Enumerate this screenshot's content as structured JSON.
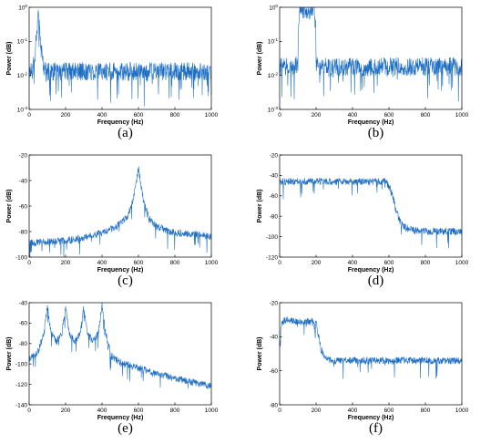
{
  "chart_data": [
    {
      "panel_label": "(a)",
      "type": "line",
      "xlabel": "Frequency (Hz)",
      "ylabel": "Power (dB)",
      "xlim": [
        0,
        1000
      ],
      "ylim": [
        0.001,
        1
      ],
      "yscale": "log",
      "xticks": [
        0,
        200,
        400,
        600,
        800,
        1000
      ],
      "yticks": [
        {
          "value": 0.001,
          "base": "10",
          "exp": "-3"
        },
        {
          "value": 0.01,
          "base": "10",
          "exp": "-2"
        },
        {
          "value": 0.1,
          "base": "10",
          "exp": "-1"
        },
        {
          "value": 1,
          "base": "10",
          "exp": "0"
        }
      ],
      "grid": false,
      "series": [
        {
          "x": [
            0,
            20,
            35,
            45,
            50,
            55,
            65,
            80,
            100,
            150,
            200,
            300,
            400,
            500,
            600,
            700,
            800,
            900,
            1000
          ],
          "values": [
            0.013,
            0.015,
            0.05,
            0.3,
            0.7,
            0.3,
            0.05,
            0.015,
            0.013,
            0.013,
            0.013,
            0.013,
            0.013,
            0.013,
            0.013,
            0.013,
            0.013,
            0.013,
            0.013
          ]
        }
      ]
    },
    {
      "panel_label": "(b)",
      "type": "line",
      "xlabel": "Frequency (Hz)",
      "ylabel": "Power (dB)",
      "xlim": [
        0,
        1000
      ],
      "ylim": [
        0.001,
        1
      ],
      "yscale": "log",
      "xticks": [
        0,
        200,
        400,
        600,
        800,
        1000
      ],
      "yticks": [
        {
          "value": 0.001,
          "base": "10",
          "exp": "-3"
        },
        {
          "value": 0.01,
          "base": "10",
          "exp": "-2"
        },
        {
          "value": 0.1,
          "base": "10",
          "exp": "-1"
        },
        {
          "value": 1,
          "base": "10",
          "exp": "0"
        }
      ],
      "grid": false,
      "series": [
        {
          "x": [
            0,
            50,
            100,
            110,
            120,
            130,
            140,
            150,
            160,
            170,
            180,
            190,
            200,
            250,
            300,
            400,
            500,
            600,
            700,
            800,
            900,
            1000
          ],
          "values": [
            0.018,
            0.018,
            0.02,
            0.8,
            0.8,
            0.8,
            0.8,
            0.8,
            0.8,
            0.8,
            0.8,
            0.8,
            0.02,
            0.018,
            0.018,
            0.018,
            0.018,
            0.018,
            0.018,
            0.018,
            0.018,
            0.018
          ]
        }
      ]
    },
    {
      "panel_label": "(c)",
      "type": "line",
      "xlabel": "Frequency (Hz)",
      "ylabel": "Power (dB)",
      "xlim": [
        0,
        1000
      ],
      "ylim": [
        -100,
        -20
      ],
      "yscale": "linear",
      "xticks": [
        0,
        200,
        400,
        600,
        800,
        1000
      ],
      "yticks": [
        -100,
        -80,
        -60,
        -40,
        -20
      ],
      "grid": false,
      "series": [
        {
          "x": [
            0,
            100,
            200,
            300,
            400,
            450,
            500,
            540,
            570,
            590,
            600,
            610,
            630,
            660,
            700,
            750,
            800,
            900,
            1000
          ],
          "values": [
            -89,
            -88,
            -87,
            -85,
            -81,
            -78,
            -74,
            -68,
            -55,
            -40,
            -30,
            -40,
            -58,
            -70,
            -76,
            -79,
            -81,
            -82,
            -84
          ]
        }
      ]
    },
    {
      "panel_label": "(d)",
      "type": "line",
      "xlabel": "Frequency (Hz)",
      "ylabel": "Power (dB)",
      "xlim": [
        0,
        1000
      ],
      "ylim": [
        -120,
        -20
      ],
      "yscale": "linear",
      "xticks": [
        0,
        200,
        400,
        600,
        800,
        1000
      ],
      "yticks": [
        -120,
        -100,
        -80,
        -60,
        -40,
        -20
      ],
      "grid": false,
      "series": [
        {
          "x": [
            0,
            100,
            200,
            300,
            400,
            500,
            580,
            600,
            620,
            640,
            660,
            680,
            700,
            750,
            800,
            900,
            1000
          ],
          "values": [
            -46,
            -46,
            -46,
            -46,
            -46,
            -46,
            -46,
            -50,
            -60,
            -75,
            -85,
            -90,
            -92,
            -94,
            -95,
            -95,
            -95
          ]
        }
      ]
    },
    {
      "panel_label": "(e)",
      "type": "line",
      "xlabel": "Frequency (Hz)",
      "ylabel": "Power (dB)",
      "xlim": [
        0,
        1000
      ],
      "ylim": [
        -140,
        -40
      ],
      "yscale": "linear",
      "xticks": [
        0,
        200,
        400,
        600,
        800,
        1000
      ],
      "yticks": [
        -140,
        -120,
        -100,
        -80,
        -60,
        -40
      ],
      "grid": false,
      "series": [
        {
          "x": [
            0,
            50,
            80,
            100,
            120,
            150,
            180,
            200,
            220,
            250,
            280,
            300,
            320,
            350,
            380,
            400,
            420,
            450,
            500,
            600,
            700,
            800,
            900,
            1000
          ],
          "values": [
            -95,
            -88,
            -70,
            -43,
            -70,
            -78,
            -70,
            -45,
            -70,
            -78,
            -70,
            -45,
            -70,
            -78,
            -70,
            -42,
            -70,
            -92,
            -99,
            -104,
            -110,
            -114,
            -118,
            -122
          ]
        }
      ]
    },
    {
      "panel_label": "(f)",
      "type": "line",
      "xlabel": "Frequency (Hz)",
      "ylabel": "Power (dB)",
      "xlim": [
        0,
        1000
      ],
      "ylim": [
        -80,
        -20
      ],
      "yscale": "linear",
      "xticks": [
        0,
        200,
        400,
        600,
        800,
        1000
      ],
      "yticks": [
        -80,
        -60,
        -40,
        -20
      ],
      "grid": false,
      "series": [
        {
          "x": [
            0,
            10,
            30,
            100,
            150,
            200,
            210,
            230,
            250,
            300,
            400,
            500,
            600,
            700,
            800,
            900,
            1000
          ],
          "values": [
            -45,
            -32,
            -30,
            -31,
            -31,
            -31,
            -38,
            -48,
            -53,
            -54,
            -54,
            -54,
            -54,
            -54,
            -54,
            -54,
            -54
          ]
        }
      ]
    }
  ]
}
